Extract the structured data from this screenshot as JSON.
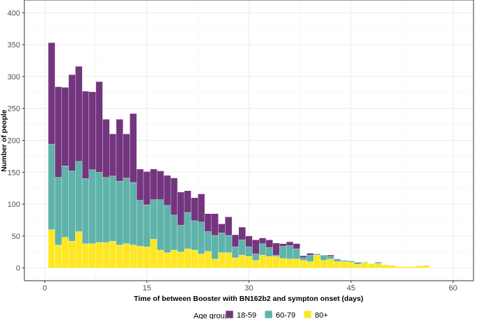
{
  "chart_data": {
    "type": "bar",
    "stacked": true,
    "title": "",
    "xlabel": "Time of between Booster with BN162b2 and sympton onset (days)",
    "ylabel": "Number of people",
    "xlim": [
      -3,
      63
    ],
    "ylim": [
      -20,
      420
    ],
    "xticks": [
      0,
      15,
      30,
      45,
      60
    ],
    "yticks": [
      0,
      50,
      100,
      150,
      200,
      250,
      300,
      350,
      400
    ],
    "grid": true,
    "legend_title": "Age group",
    "legend_position": "bottom",
    "x": [
      1,
      2,
      3,
      4,
      5,
      6,
      7,
      8,
      9,
      10,
      11,
      12,
      13,
      14,
      15,
      16,
      17,
      18,
      19,
      20,
      21,
      22,
      23,
      24,
      25,
      26,
      27,
      28,
      29,
      30,
      31,
      32,
      33,
      34,
      35,
      36,
      37,
      38,
      39,
      40,
      41,
      42,
      43,
      44,
      45,
      46,
      47,
      48,
      49,
      50,
      51,
      52,
      53,
      54,
      55,
      56,
      57,
      58,
      59
    ],
    "series": [
      {
        "name": "80+",
        "color": "#FDE725",
        "values": [
          60,
          36,
          48,
          42,
          57,
          38,
          38,
          40,
          40,
          42,
          36,
          38,
          36,
          34,
          33,
          45,
          28,
          24,
          28,
          25,
          30,
          28,
          22,
          26,
          14,
          24,
          24,
          16,
          20,
          18,
          12,
          20,
          18,
          18,
          15,
          14,
          14,
          12,
          10,
          20,
          12,
          14,
          10,
          10,
          9,
          6,
          8,
          7,
          7,
          5,
          4,
          2,
          2,
          2,
          3,
          4,
          0,
          0,
          0
        ]
      },
      {
        "name": "60-79",
        "color": "#5FB3AA",
        "values": [
          134,
          106,
          112,
          110,
          110,
          102,
          116,
          110,
          102,
          102,
          100,
          103,
          98,
          72,
          66,
          62,
          79,
          74,
          55,
          42,
          57,
          46,
          50,
          31,
          37,
          31,
          27,
          17,
          24,
          15,
          10,
          18,
          14,
          2,
          19,
          21,
          16,
          4,
          10,
          2,
          8,
          4,
          4,
          2,
          2,
          3,
          1,
          0,
          2,
          0,
          0,
          0,
          0,
          0,
          0,
          0,
          0,
          0,
          0
        ]
      },
      {
        "name": "18-59",
        "color": "#74357F",
        "values": [
          159,
          142,
          123,
          151,
          149,
          137,
          122,
          142,
          91,
          66,
          97,
          69,
          108,
          49,
          52,
          48,
          45,
          47,
          58,
          52,
          34,
          36,
          44,
          28,
          34,
          14,
          29,
          19,
          20,
          17,
          22,
          9,
          12,
          19,
          4,
          6,
          8,
          3,
          3,
          0,
          0,
          2,
          0,
          0,
          0,
          0,
          0,
          0,
          0,
          0,
          0,
          0,
          0,
          0,
          0,
          0,
          0,
          0,
          0
        ]
      }
    ]
  }
}
